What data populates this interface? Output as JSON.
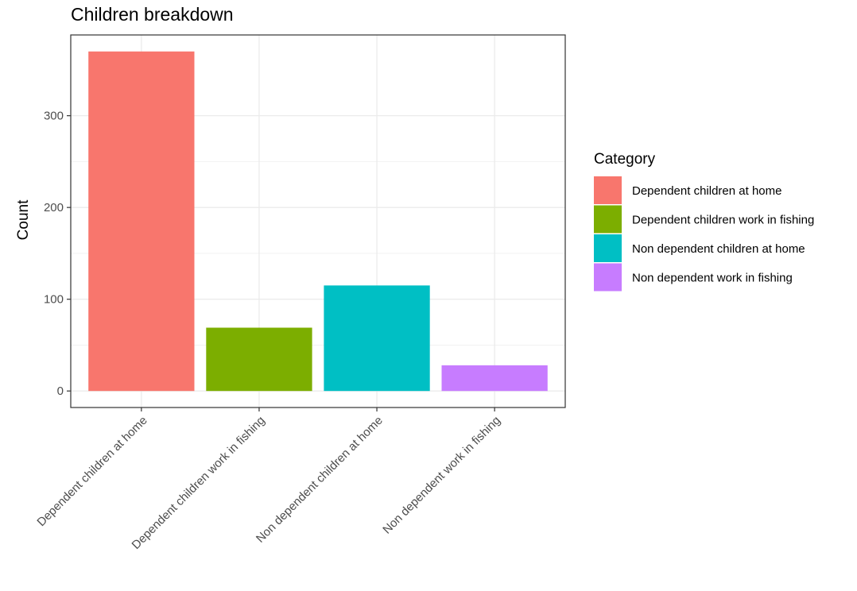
{
  "chart_data": {
    "type": "bar",
    "title": "Children breakdown",
    "xlabel": "",
    "ylabel": "Count",
    "categories": [
      "Dependent children at home",
      "Dependent children work in fishing",
      "Non dependent children at home",
      "Non dependent work in fishing"
    ],
    "values": [
      370,
      69,
      115,
      28
    ],
    "colors": [
      "#F8766D",
      "#7CAE00",
      "#00BFC4",
      "#C77CFF"
    ],
    "ylim": [
      -18,
      388
    ],
    "yticks": [
      0,
      100,
      200,
      300
    ],
    "yticklabels": [
      "0",
      "100",
      "200",
      "300"
    ],
    "grid": true,
    "legend": {
      "title": "Category",
      "position": "right",
      "entries": [
        "Dependent children at home",
        "Dependent children work in fishing",
        "Non dependent children at home",
        "Non dependent work in fishing"
      ]
    }
  }
}
